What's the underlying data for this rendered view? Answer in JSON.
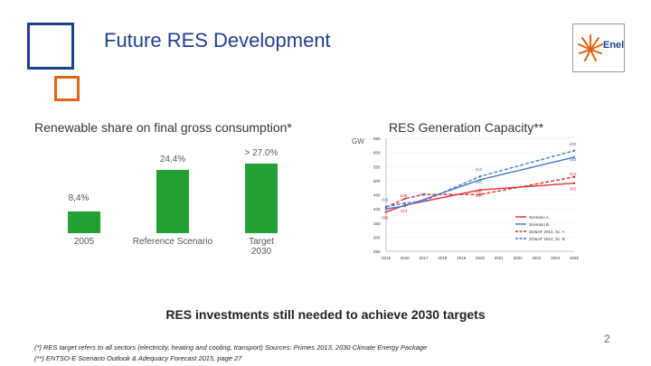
{
  "slide": {
    "title": "Future RES Development",
    "logo_text": "Enel",
    "page_number": "2",
    "bottom_heading": "RES investments still needed to achieve 2030 targets",
    "footnote_1": "(*) RES target refers to all sectors (electricity, heating and cooling, transport) Sources: Primes 2013, 2030 Climate Energy Package",
    "footnote_2": "(**) ENTSO-E Scenario Outlook & Adequacy Forecast 2015, page 27",
    "colors": {
      "blue": "#1f3f8f",
      "orange": "#e0651a",
      "green": "#22a033"
    }
  },
  "chart_data": [
    {
      "type": "bar",
      "title": "Renewable share on final gross consumption*",
      "categories": [
        "2005",
        "Reference Scenario",
        "Target 2030"
      ],
      "values": [
        8.4,
        24.4,
        27.0
      ],
      "value_labels": [
        "8,4%",
        "24,4%",
        "> 27.0%"
      ],
      "xlabel": "",
      "ylabel": "",
      "ylim": [
        0,
        30
      ]
    },
    {
      "type": "line",
      "title": "RES Generation Capacity**",
      "ylabel": "GW",
      "x": [
        "2015",
        "2016",
        "2017",
        "2018",
        "2019",
        "2020",
        "2021",
        "2022",
        "2023",
        "2024",
        "2025"
      ],
      "yticks": [
        "250",
        "300",
        "350",
        "400",
        "450",
        "500",
        "550",
        "600",
        "650"
      ],
      "ylim": [
        250,
        650
      ],
      "series": [
        {
          "name": "Scenario A",
          "color": "#e03030",
          "dash": false,
          "x": [
            2015,
            2016,
            2020,
            2025
          ],
          "values": [
            389,
            413,
            467,
            491
          ],
          "point_labels": [
            "389",
            "413",
            "467",
            "491"
          ]
        },
        {
          "name": "Scenario B",
          "color": "#4a78c8",
          "dash": false,
          "x": [
            2015,
            2016,
            2020,
            2025
          ],
          "values": [
            400,
            410,
            503,
            583
          ],
          "point_labels": [
            "",
            "",
            "503",
            "583"
          ]
        },
        {
          "name": "SO&AF 2014, Sc. A",
          "color": "#e03030",
          "dash": true,
          "x": [
            2015,
            2016,
            2017,
            2020,
            2025
          ],
          "values": [
            406,
            436,
            451,
            451,
            513
          ],
          "point_labels": [
            "",
            "436",
            "",
            "451",
            "513"
          ]
        },
        {
          "name": "SO&AF 2014, Sc. B",
          "color": "#4a78c8",
          "dash": true,
          "x": [
            2015,
            2016,
            2017,
            2020,
            2025
          ],
          "values": [
            408,
            420,
            428,
            515,
            606
          ],
          "point_labels": [
            "408",
            "",
            "428",
            "515",
            "606"
          ]
        }
      ]
    }
  ]
}
